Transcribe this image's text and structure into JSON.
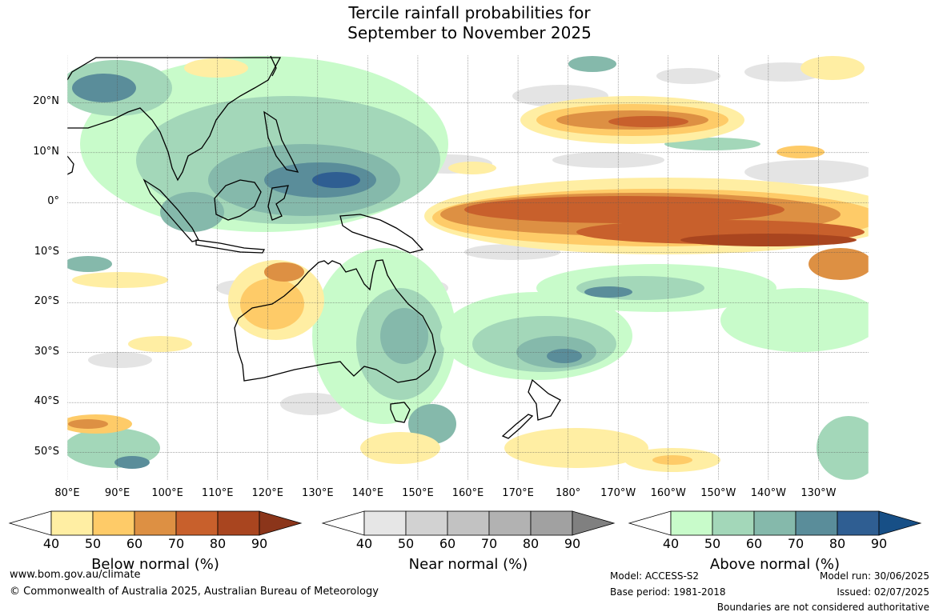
{
  "title": {
    "line1": "Tercile rainfall probabilities for",
    "line2": "September to November 2025"
  },
  "axes": {
    "lat_labels": [
      "20°N",
      "10°N",
      "0°",
      "10°S",
      "20°S",
      "30°S",
      "40°S",
      "50°S"
    ],
    "lat_values": [
      20,
      10,
      0,
      -10,
      -20,
      -30,
      -40,
      -50
    ],
    "lon_labels": [
      "80°E",
      "90°E",
      "100°E",
      "110°E",
      "120°E",
      "130°E",
      "140°E",
      "150°E",
      "160°E",
      "170°E",
      "180°",
      "170°W",
      "160°W",
      "150°W",
      "140°W",
      "130°W"
    ],
    "lon_values": [
      80,
      90,
      100,
      110,
      120,
      130,
      140,
      150,
      160,
      170,
      180,
      190,
      200,
      210,
      220,
      230
    ],
    "lat_range": [
      -55.5,
      29.5
    ],
    "lon_range": [
      80,
      240
    ],
    "grid": true
  },
  "colorbars": [
    {
      "name": "Below normal (%)",
      "ticks": [
        "40",
        "50",
        "60",
        "70",
        "80",
        "90"
      ],
      "colors": [
        "#ffeea3",
        "#fecb68",
        "#dd9043",
        "#c8602c",
        "#a9451f",
        "#8b351a"
      ]
    },
    {
      "name": "Near normal (%)",
      "ticks": [
        "40",
        "50",
        "60",
        "70",
        "80",
        "90"
      ],
      "colors": [
        "#e6e6e6",
        "#d2d2d2",
        "#c2c2c2",
        "#b2b2b2",
        "#a1a1a1",
        "#808080"
      ]
    },
    {
      "name": "Above normal (%)",
      "ticks": [
        "40",
        "50",
        "60",
        "70",
        "80",
        "90"
      ],
      "colors": [
        "#c8fbca",
        "#a3d7b9",
        "#85b9ab",
        "#5a8d9a",
        "#2f5e92",
        "#174f86"
      ]
    }
  ],
  "footer": {
    "url": "www.bom.gov.au/climate",
    "copyright": "© Commonwealth of Australia 2025, Australian Bureau of Meteorology",
    "model": "Model: ACCESS-S2",
    "base_period": "Base period: 1981-2018",
    "model_run": "Model run: 30/06/2025",
    "issued": "Issued: 02/07/2025",
    "disclaimer": "Boundaries are not considered authoritative"
  }
}
